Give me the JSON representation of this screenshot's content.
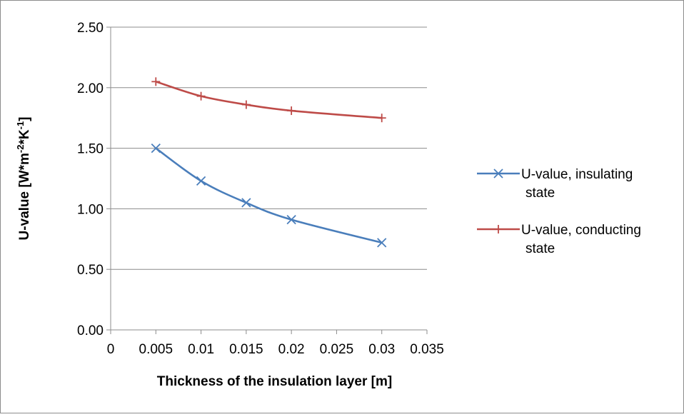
{
  "chart_data": {
    "type": "line",
    "title": "",
    "xlabel": "Thickness of the insulation layer [m]",
    "ylabel": {
      "parts": [
        {
          "text": "U-value [W*m",
          "sup": false
        },
        {
          "text": "-2",
          "sup": true
        },
        {
          "text": "*K",
          "sup": false
        },
        {
          "text": "-1",
          "sup": true
        },
        {
          "text": "]",
          "sup": false
        }
      ]
    },
    "xlim": [
      0,
      0.035
    ],
    "ylim": [
      0,
      2.5
    ],
    "xticks": [
      {
        "value": 0,
        "label": "0"
      },
      {
        "value": 0.005,
        "label": "0.005"
      },
      {
        "value": 0.01,
        "label": "0.01"
      },
      {
        "value": 0.015,
        "label": "0.015"
      },
      {
        "value": 0.02,
        "label": "0.02"
      },
      {
        "value": 0.025,
        "label": "0.025"
      },
      {
        "value": 0.03,
        "label": "0.03"
      },
      {
        "value": 0.035,
        "label": "0.035"
      }
    ],
    "yticks": [
      {
        "value": 0,
        "label": "0.00"
      },
      {
        "value": 0.5,
        "label": "0.50"
      },
      {
        "value": 1.0,
        "label": "1.00"
      },
      {
        "value": 1.5,
        "label": "1.50"
      },
      {
        "value": 2.0,
        "label": "2.00"
      },
      {
        "value": 2.5,
        "label": "2.50"
      }
    ],
    "grid": {
      "horizontal": true,
      "vertical": false
    },
    "legend_position": "right",
    "series": [
      {
        "name_lines": [
          "U-value, insulating",
          "state"
        ],
        "color": "#4a7ebb",
        "marker": "x",
        "x": [
          0.005,
          0.01,
          0.015,
          0.02,
          0.03
        ],
        "y": [
          1.5,
          1.23,
          1.05,
          0.91,
          0.72
        ]
      },
      {
        "name_lines": [
          "U-value, conducting",
          "state"
        ],
        "color": "#be4b48",
        "marker": "plus",
        "x": [
          0.005,
          0.01,
          0.015,
          0.02,
          0.03
        ],
        "y": [
          2.05,
          1.93,
          1.86,
          1.81,
          1.75
        ]
      }
    ]
  }
}
